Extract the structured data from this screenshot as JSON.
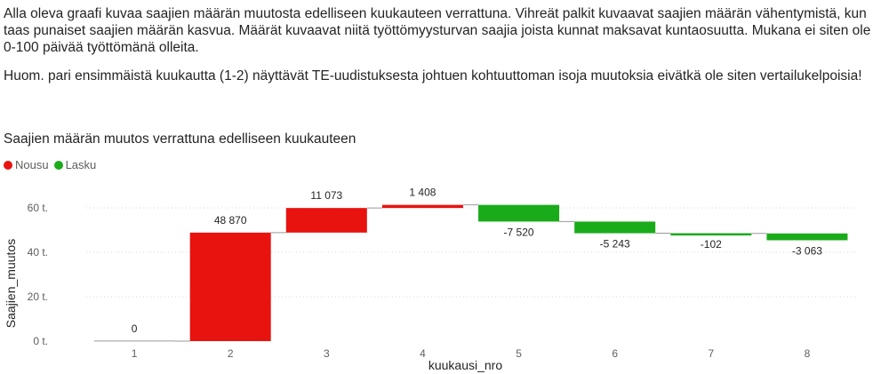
{
  "intro": {
    "p1": "Alla oleva graafi kuvaa saajien määrän muutosta edelliseen kuukauteen verrattuna. Vihreät palkit kuvaavat saajien määrän vähentymistä, kun taas punaiset saajien määrän kasvua. Määrät kuvaavat niitä työttömyysturvan saajia joista kunnat maksavat kuntaosuutta. Mukana ei siten ole 0-100 päivää työttömänä olleita.",
    "p2": "Huom. pari ensimmäistä kuukautta (1-2) näyttävät TE-uudistuksesta johtuen kohtuuttoman isoja muutoksia eivätkä ole siten vertailukelpoisia!"
  },
  "chart_data": {
    "type": "waterfall",
    "title": "Saajien määrän muutos verrattuna edelliseen kuukauteen",
    "xlabel": "kuukausi_nro",
    "ylabel": "Saajien_muutos",
    "categories": [
      "1",
      "2",
      "3",
      "4",
      "5",
      "6",
      "7",
      "8"
    ],
    "values": [
      0,
      48870,
      11073,
      1408,
      -7520,
      -5243,
      -102,
      -3063
    ],
    "value_labels": [
      "0",
      "48 870",
      "11 073",
      "1 408",
      "-7 520",
      "-5 243",
      "-102",
      "-3 063"
    ],
    "ylim": [
      0,
      66000
    ],
    "yticks": [
      0,
      20000,
      40000,
      60000
    ],
    "ytick_labels": [
      "0 t.",
      "20 t.",
      "40 t.",
      "60 t."
    ],
    "grid": true,
    "legend": [
      {
        "name": "Nousu",
        "color": "#E8130F"
      },
      {
        "name": "Lasku",
        "color": "#1AAB1A"
      }
    ],
    "legend_position": "top-left",
    "colors": {
      "increase": "#E8130F",
      "decrease": "#1AAB1A",
      "connector": "#999999"
    }
  }
}
